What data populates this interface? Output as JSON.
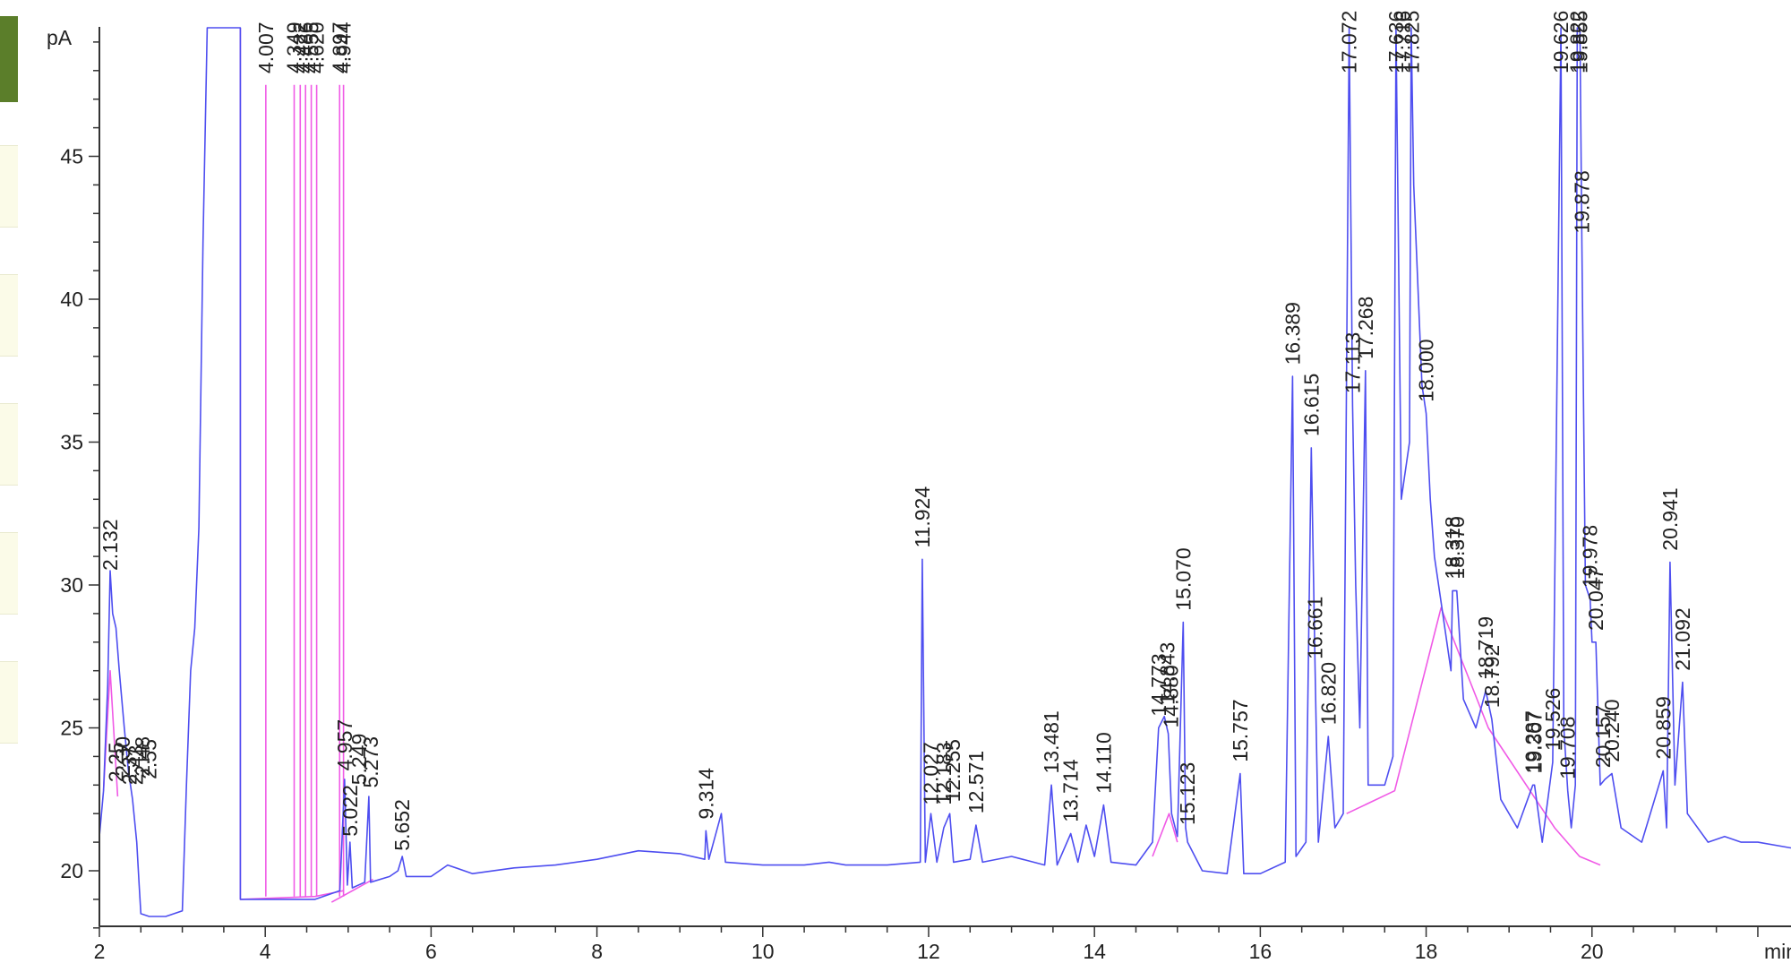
{
  "chart_data": {
    "type": "line",
    "title": "",
    "xlabel": "min",
    "ylabel": "pA",
    "xlim": [
      2,
      22.4
    ],
    "ylim": [
      17.5,
      49.5
    ],
    "x_ticks": [
      2,
      4,
      6,
      8,
      10,
      12,
      14,
      16,
      18,
      20
    ],
    "y_ticks": [
      20,
      25,
      30,
      35,
      40,
      45
    ],
    "grid": false,
    "colors": {
      "signal": "#4e4ef0",
      "baseline": "#f05ae6",
      "axis": "#333333"
    },
    "signal_trace": {
      "name": "",
      "points": [
        [
          2.0,
          21.2
        ],
        [
          2.05,
          22.8
        ],
        [
          2.1,
          26.5
        ],
        [
          2.13,
          30.5
        ],
        [
          2.16,
          29.0
        ],
        [
          2.2,
          28.5
        ],
        [
          2.24,
          27.0
        ],
        [
          2.3,
          25.0
        ],
        [
          2.35,
          23.5
        ],
        [
          2.4,
          22.5
        ],
        [
          2.45,
          21.0
        ],
        [
          2.48,
          19.5
        ],
        [
          2.5,
          18.5
        ],
        [
          2.6,
          18.4
        ],
        [
          2.8,
          18.4
        ],
        [
          2.9,
          18.5
        ],
        [
          3.0,
          18.6
        ],
        [
          3.05,
          23.0
        ],
        [
          3.1,
          27.0
        ],
        [
          3.15,
          28.5
        ],
        [
          3.2,
          32.0
        ],
        [
          3.25,
          42.0
        ],
        [
          3.3,
          49.5
        ],
        [
          3.7,
          49.5
        ],
        [
          3.7,
          19.0
        ],
        [
          4.6,
          19.0
        ],
        [
          4.9,
          19.3
        ],
        [
          4.957,
          23.2
        ],
        [
          4.99,
          19.5
        ],
        [
          5.022,
          21.0
        ],
        [
          5.05,
          19.4
        ],
        [
          5.2,
          19.6
        ],
        [
          5.249,
          22.6
        ],
        [
          5.27,
          19.6
        ],
        [
          5.5,
          19.8
        ],
        [
          5.6,
          20.0
        ],
        [
          5.652,
          20.5
        ],
        [
          5.7,
          19.8
        ],
        [
          6.0,
          19.8
        ],
        [
          6.2,
          20.2
        ],
        [
          6.5,
          19.9
        ],
        [
          7.0,
          20.1
        ],
        [
          7.5,
          20.2
        ],
        [
          8.0,
          20.4
        ],
        [
          8.5,
          20.7
        ],
        [
          9.0,
          20.6
        ],
        [
          9.3,
          20.4
        ],
        [
          9.314,
          21.4
        ],
        [
          9.35,
          20.4
        ],
        [
          9.5,
          22.0
        ],
        [
          9.55,
          20.3
        ],
        [
          10.0,
          20.2
        ],
        [
          10.5,
          20.2
        ],
        [
          10.8,
          20.3
        ],
        [
          11.0,
          20.2
        ],
        [
          11.5,
          20.2
        ],
        [
          11.9,
          20.3
        ],
        [
          11.924,
          30.9
        ],
        [
          11.96,
          20.3
        ],
        [
          12.027,
          22.0
        ],
        [
          12.1,
          20.3
        ],
        [
          12.183,
          21.5
        ],
        [
          12.255,
          22.0
        ],
        [
          12.3,
          20.3
        ],
        [
          12.5,
          20.4
        ],
        [
          12.571,
          21.6
        ],
        [
          12.65,
          20.3
        ],
        [
          13.0,
          20.5
        ],
        [
          13.4,
          20.2
        ],
        [
          13.481,
          23.0
        ],
        [
          13.55,
          20.2
        ],
        [
          13.714,
          21.3
        ],
        [
          13.8,
          20.3
        ],
        [
          13.9,
          21.6
        ],
        [
          14.0,
          20.5
        ],
        [
          14.11,
          22.3
        ],
        [
          14.2,
          20.3
        ],
        [
          14.5,
          20.2
        ],
        [
          14.7,
          21.0
        ],
        [
          14.773,
          25.0
        ],
        [
          14.843,
          25.4
        ],
        [
          14.89,
          24.8
        ],
        [
          14.93,
          22.0
        ],
        [
          15.0,
          21.2
        ],
        [
          15.07,
          28.7
        ],
        [
          15.1,
          21.5
        ],
        [
          15.123,
          21.0
        ],
        [
          15.3,
          20.0
        ],
        [
          15.6,
          19.9
        ],
        [
          15.757,
          23.4
        ],
        [
          15.8,
          19.9
        ],
        [
          16.0,
          19.9
        ],
        [
          16.3,
          20.3
        ],
        [
          16.389,
          37.3
        ],
        [
          16.43,
          20.5
        ],
        [
          16.55,
          21.0
        ],
        [
          16.615,
          34.8
        ],
        [
          16.661,
          27.0
        ],
        [
          16.7,
          21.0
        ],
        [
          16.82,
          24.7
        ],
        [
          16.9,
          21.5
        ],
        [
          17.0,
          22.0
        ],
        [
          17.072,
          49.5
        ],
        [
          17.113,
          36.3
        ],
        [
          17.15,
          30.0
        ],
        [
          17.2,
          25.0
        ],
        [
          17.268,
          37.5
        ],
        [
          17.3,
          23.0
        ],
        [
          17.5,
          23.0
        ],
        [
          17.6,
          24.0
        ],
        [
          17.636,
          49.5
        ],
        [
          17.7,
          33.0
        ],
        [
          17.8,
          35.0
        ],
        [
          17.82,
          49.5
        ],
        [
          17.85,
          44.0
        ],
        [
          17.95,
          37.0
        ],
        [
          18.0,
          36.0
        ],
        [
          18.05,
          33.0
        ],
        [
          18.1,
          31.0
        ],
        [
          18.2,
          29.0
        ],
        [
          18.3,
          27.0
        ],
        [
          18.318,
          29.8
        ],
        [
          18.37,
          29.8
        ],
        [
          18.45,
          26.0
        ],
        [
          18.6,
          25.0
        ],
        [
          18.719,
          26.3
        ],
        [
          18.792,
          25.3
        ],
        [
          18.9,
          22.5
        ],
        [
          19.1,
          21.5
        ],
        [
          19.287,
          23.0
        ],
        [
          19.307,
          23.0
        ],
        [
          19.4,
          21.0
        ],
        [
          19.526,
          23.8
        ],
        [
          19.626,
          49.5
        ],
        [
          19.66,
          25.0
        ],
        [
          19.708,
          22.8
        ],
        [
          19.75,
          21.5
        ],
        [
          19.8,
          23.0
        ],
        [
          19.822,
          49.5
        ],
        [
          19.855,
          49.5
        ],
        [
          19.878,
          41.9
        ],
        [
          19.92,
          30.0
        ],
        [
          19.978,
          29.5
        ],
        [
          20.0,
          28.0
        ],
        [
          20.047,
          28.0
        ],
        [
          20.1,
          23.0
        ],
        [
          20.157,
          23.2
        ],
        [
          20.24,
          23.4
        ],
        [
          20.35,
          21.5
        ],
        [
          20.6,
          21.0
        ],
        [
          20.859,
          23.5
        ],
        [
          20.9,
          21.5
        ],
        [
          20.941,
          30.8
        ],
        [
          21.0,
          23.0
        ],
        [
          21.092,
          26.6
        ],
        [
          21.15,
          22.0
        ],
        [
          21.4,
          21.0
        ],
        [
          21.6,
          21.2
        ],
        [
          21.8,
          21.0
        ],
        [
          22.0,
          21.0
        ],
        [
          22.4,
          20.8
        ]
      ]
    },
    "baseline_segments": [
      {
        "points": [
          [
            2.05,
            22.8
          ],
          [
            2.13,
            27.0
          ],
          [
            2.22,
            22.6
          ]
        ]
      },
      {
        "points": [
          [
            3.7,
            49.5
          ],
          [
            3.7,
            19.0
          ],
          [
            4.6,
            19.1
          ],
          [
            4.94,
            19.3
          ]
        ]
      },
      {
        "points": [
          [
            4.8,
            18.9
          ],
          [
            5.3,
            19.7
          ]
        ]
      },
      {
        "points": [
          [
            14.7,
            20.5
          ],
          [
            14.9,
            22.0
          ],
          [
            15.0,
            21.0
          ]
        ]
      },
      {
        "points": [
          [
            17.04,
            22.0
          ],
          [
            17.62,
            22.8
          ],
          [
            18.18,
            29.2
          ],
          [
            18.75,
            25.0
          ],
          [
            19.55,
            21.5
          ],
          [
            19.85,
            20.5
          ],
          [
            20.1,
            20.2
          ]
        ]
      }
    ],
    "peak_markers": [
      {
        "rt": 4.007,
        "top": 47.5
      },
      {
        "rt": 4.349,
        "top": 47.5
      },
      {
        "rt": 4.422,
        "top": 47.5
      },
      {
        "rt": 4.486,
        "top": 47.5
      },
      {
        "rt": 4.555,
        "top": 47.5
      },
      {
        "rt": 4.62,
        "top": 47.5
      },
      {
        "rt": 4.897,
        "top": 47.5
      },
      {
        "rt": 4.944,
        "top": 47.5
      }
    ],
    "peak_labels": [
      {
        "rt": "2.132",
        "x": 2.132,
        "y": 30.5
      },
      {
        "rt": "2.25",
        "x": 2.2,
        "y": 23.1
      },
      {
        "rt": "2.30",
        "x": 2.28,
        "y": 23.3
      },
      {
        "rt": "2.37",
        "x": 2.36,
        "y": 23.0
      },
      {
        "rt": "2.43",
        "x": 2.44,
        "y": 23.0
      },
      {
        "rt": "2.48",
        "x": 2.52,
        "y": 23.3
      },
      {
        "rt": "2.55",
        "x": 2.6,
        "y": 23.2
      },
      {
        "rt": "4.007",
        "x": 4.007,
        "y": 47.9
      },
      {
        "rt": "4.349",
        "x": 4.349,
        "y": 47.9
      },
      {
        "rt": "4.422",
        "x": 4.422,
        "y": 47.9
      },
      {
        "rt": "4.486",
        "x": 4.486,
        "y": 47.9
      },
      {
        "rt": "4.555",
        "x": 4.555,
        "y": 47.9
      },
      {
        "rt": "4.620",
        "x": 4.62,
        "y": 47.9
      },
      {
        "rt": "4.897",
        "x": 4.897,
        "y": 47.9
      },
      {
        "rt": "4.944",
        "x": 4.944,
        "y": 47.9
      },
      {
        "rt": "4.957",
        "x": 4.957,
        "y": 23.5
      },
      {
        "rt": "5.022",
        "x": 5.022,
        "y": 21.2
      },
      {
        "rt": "5.249",
        "x": 5.13,
        "y": 23.0
      },
      {
        "rt": "5.273",
        "x": 5.273,
        "y": 22.9
      },
      {
        "rt": "5.652",
        "x": 5.652,
        "y": 20.7
      },
      {
        "rt": "9.314",
        "x": 9.314,
        "y": 21.8
      },
      {
        "rt": "11.924",
        "x": 11.924,
        "y": 31.3
      },
      {
        "rt": "12.027",
        "x": 12.027,
        "y": 22.3
      },
      {
        "rt": "12.183",
        "x": 12.183,
        "y": 22.3
      },
      {
        "rt": "12.255",
        "x": 12.29,
        "y": 22.4
      },
      {
        "rt": "12.571",
        "x": 12.571,
        "y": 22.0
      },
      {
        "rt": "13.481",
        "x": 13.481,
        "y": 23.4
      },
      {
        "rt": "13.714",
        "x": 13.714,
        "y": 21.7
      },
      {
        "rt": "14.110",
        "x": 14.11,
        "y": 22.7
      },
      {
        "rt": "14.773",
        "x": 14.773,
        "y": 25.4
      },
      {
        "rt": "14.843",
        "x": 14.88,
        "y": 25.8
      },
      {
        "rt": "14.880",
        "x": 14.92,
        "y": 25.0
      },
      {
        "rt": "15.070",
        "x": 15.07,
        "y": 29.1
      },
      {
        "rt": "15.123",
        "x": 15.123,
        "y": 21.6
      },
      {
        "rt": "15.757",
        "x": 15.757,
        "y": 23.8
      },
      {
        "rt": "16.389",
        "x": 16.389,
        "y": 37.7
      },
      {
        "rt": "16.615",
        "x": 16.615,
        "y": 35.2
      },
      {
        "rt": "16.661",
        "x": 16.661,
        "y": 27.4
      },
      {
        "rt": "16.820",
        "x": 16.82,
        "y": 25.1
      },
      {
        "rt": "17.072",
        "x": 17.072,
        "y": 47.9
      },
      {
        "rt": "17.113",
        "x": 17.113,
        "y": 36.7
      },
      {
        "rt": "17.268",
        "x": 17.268,
        "y": 37.9
      },
      {
        "rt": "17.636",
        "x": 17.636,
        "y": 47.9
      },
      {
        "rt": "17.716",
        "x": 17.716,
        "y": 47.9
      },
      {
        "rt": "17.825",
        "x": 17.825,
        "y": 47.9
      },
      {
        "rt": "18.000",
        "x": 18.0,
        "y": 36.4
      },
      {
        "rt": "18.318",
        "x": 18.318,
        "y": 30.2
      },
      {
        "rt": "18.370",
        "x": 18.37,
        "y": 30.2
      },
      {
        "rt": "18.719",
        "x": 18.719,
        "y": 26.7
      },
      {
        "rt": "18.792",
        "x": 18.792,
        "y": 25.7
      },
      {
        "rt": "19.287",
        "x": 19.287,
        "y": 23.4
      },
      {
        "rt": "19.307",
        "x": 19.307,
        "y": 23.4
      },
      {
        "rt": "19.526",
        "x": 19.526,
        "y": 24.2
      },
      {
        "rt": "19.626",
        "x": 19.626,
        "y": 47.9
      },
      {
        "rt": "19.708",
        "x": 19.708,
        "y": 23.2
      },
      {
        "rt": "19.822",
        "x": 19.822,
        "y": 47.9
      },
      {
        "rt": "19.855",
        "x": 19.855,
        "y": 47.9
      },
      {
        "rt": "19.878",
        "x": 19.878,
        "y": 42.3
      },
      {
        "rt": "19.978",
        "x": 19.978,
        "y": 29.9
      },
      {
        "rt": "20.047",
        "x": 20.047,
        "y": 28.4
      },
      {
        "rt": "20.157",
        "x": 20.13,
        "y": 23.6
      },
      {
        "rt": "20.240",
        "x": 20.24,
        "y": 23.8
      },
      {
        "rt": "20.859",
        "x": 20.859,
        "y": 23.9
      },
      {
        "rt": "20.941",
        "x": 20.941,
        "y": 31.2
      },
      {
        "rt": "21.092",
        "x": 21.092,
        "y": 27.0
      }
    ]
  }
}
